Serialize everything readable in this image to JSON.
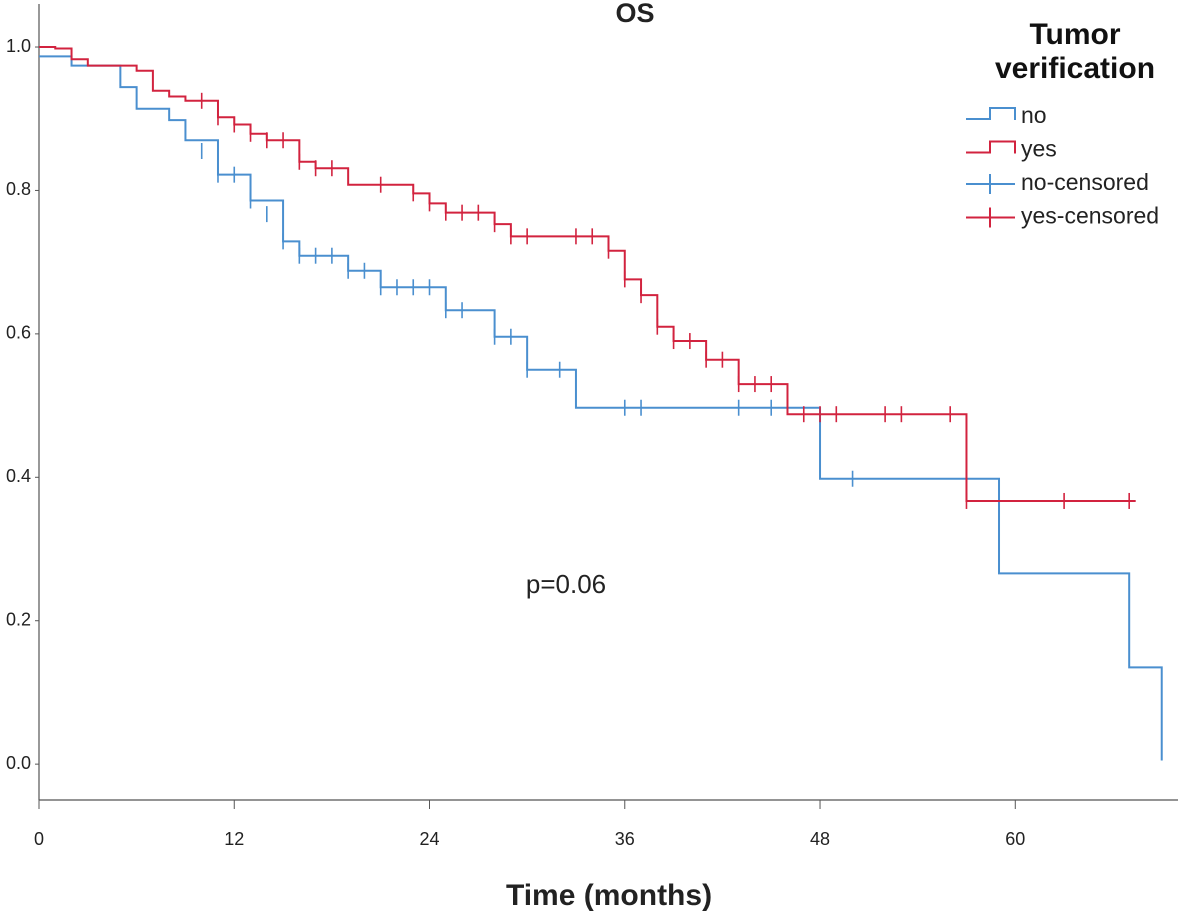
{
  "chart_data": {
    "type": "kaplan-meier",
    "title": "OS",
    "xlabel": "Time (months)",
    "annotation": "p=0.06",
    "legend_title": "Tumor verification",
    "legend_position": "upper right",
    "xlim": [
      0,
      70
    ],
    "ylim": [
      -0.05,
      1.06
    ],
    "xticks": [
      0,
      12,
      24,
      36,
      48,
      60
    ],
    "yticks": [
      {
        "value": 0.0,
        "label": "0.0"
      },
      0.2,
      0.4,
      0.6,
      0.8,
      {
        "value": 1.0,
        "label": "1.0"
      }
    ],
    "series": [
      {
        "name": "no",
        "color": "#4a8fcf",
        "x": [
          0,
          2,
          5,
          6,
          8,
          9,
          11,
          13,
          15,
          16,
          19,
          21,
          25,
          28,
          30,
          33,
          48,
          59,
          67,
          69
        ],
        "values": [
          0.987,
          0.974,
          0.944,
          0.914,
          0.898,
          0.87,
          0.822,
          0.786,
          0.729,
          0.709,
          0.688,
          0.665,
          0.633,
          0.596,
          0.55,
          0.497,
          0.398,
          0.266,
          0.135,
          0.005
        ]
      },
      {
        "name": "yes",
        "color": "#d2233f",
        "x": [
          0,
          1,
          2,
          3,
          6,
          7,
          8,
          9,
          11,
          12,
          13,
          14,
          16,
          17,
          19,
          23,
          24,
          25,
          28,
          29,
          35,
          36,
          37,
          38,
          39,
          41,
          43,
          46,
          57,
          67.4
        ],
        "values": [
          1.0,
          0.998,
          0.983,
          0.974,
          0.967,
          0.939,
          0.931,
          0.925,
          0.902,
          0.892,
          0.879,
          0.87,
          0.84,
          0.831,
          0.808,
          0.796,
          0.782,
          0.769,
          0.753,
          0.736,
          0.716,
          0.676,
          0.654,
          0.61,
          0.59,
          0.564,
          0.53,
          0.488,
          0.367,
          0.367
        ]
      },
      {
        "name": "no-censored",
        "color": "#4a8fcf",
        "censored": true,
        "x": [
          10,
          11,
          12,
          13,
          14,
          15,
          16,
          17,
          18,
          19,
          20,
          21,
          22,
          23,
          24,
          25,
          26,
          28,
          29,
          30,
          32,
          36,
          37,
          43,
          45,
          50
        ],
        "values": [
          0.855,
          0.822,
          0.822,
          0.786,
          0.767,
          0.729,
          0.709,
          0.709,
          0.709,
          0.688,
          0.688,
          0.665,
          0.665,
          0.665,
          0.665,
          0.633,
          0.633,
          0.596,
          0.596,
          0.55,
          0.55,
          0.497,
          0.497,
          0.497,
          0.497,
          0.398
        ]
      },
      {
        "name": "yes-censored",
        "color": "#d2233f",
        "censored": true,
        "x": [
          10,
          11,
          12,
          13,
          14,
          15,
          16,
          17,
          18,
          21,
          23,
          24,
          25,
          26,
          27,
          28,
          29,
          30,
          33,
          34,
          35,
          36,
          37,
          38,
          39,
          40,
          41,
          42,
          43,
          44,
          45,
          47,
          48,
          49,
          52,
          53,
          56,
          57,
          63,
          67
        ],
        "values": [
          0.925,
          0.902,
          0.892,
          0.879,
          0.87,
          0.87,
          0.84,
          0.831,
          0.831,
          0.808,
          0.796,
          0.782,
          0.769,
          0.769,
          0.769,
          0.753,
          0.736,
          0.736,
          0.736,
          0.736,
          0.716,
          0.676,
          0.654,
          0.61,
          0.59,
          0.59,
          0.564,
          0.564,
          0.53,
          0.53,
          0.53,
          0.488,
          0.488,
          0.488,
          0.488,
          0.488,
          0.488,
          0.367,
          0.367,
          0.367
        ]
      }
    ]
  }
}
